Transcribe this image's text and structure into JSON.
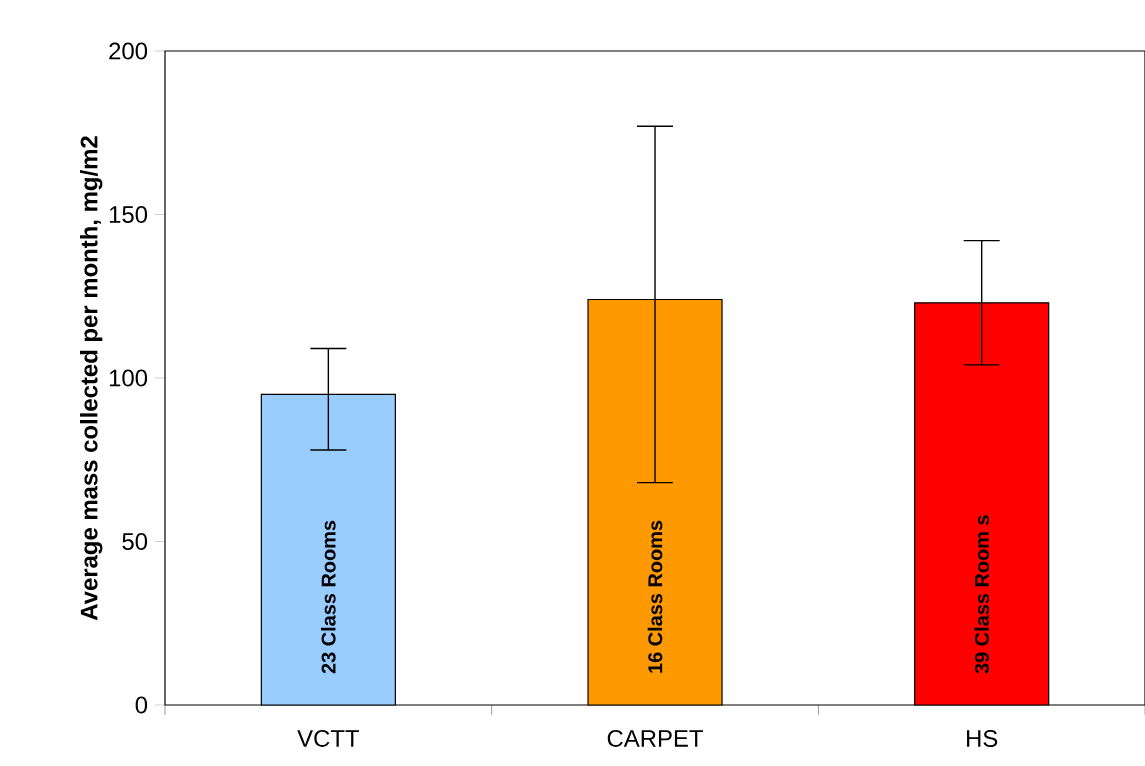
{
  "chart_data": {
    "type": "bar",
    "ylabel": "Average mass collected per month, mg/m2",
    "categories": [
      "VCTT",
      "CARPET",
      "HS"
    ],
    "values": [
      95,
      124,
      123
    ],
    "colors": [
      "#99ccff",
      "#ff9900",
      "#ff0000"
    ],
    "errors": [
      [
        78,
        109
      ],
      [
        68,
        177
      ],
      [
        104,
        142
      ]
    ],
    "ylim": [
      0,
      200
    ],
    "yticks": [
      0,
      50,
      100,
      150,
      200
    ],
    "annotations": [
      "23 Class Rooms",
      "16 Class Rooms",
      "39 Class Room s"
    ]
  }
}
